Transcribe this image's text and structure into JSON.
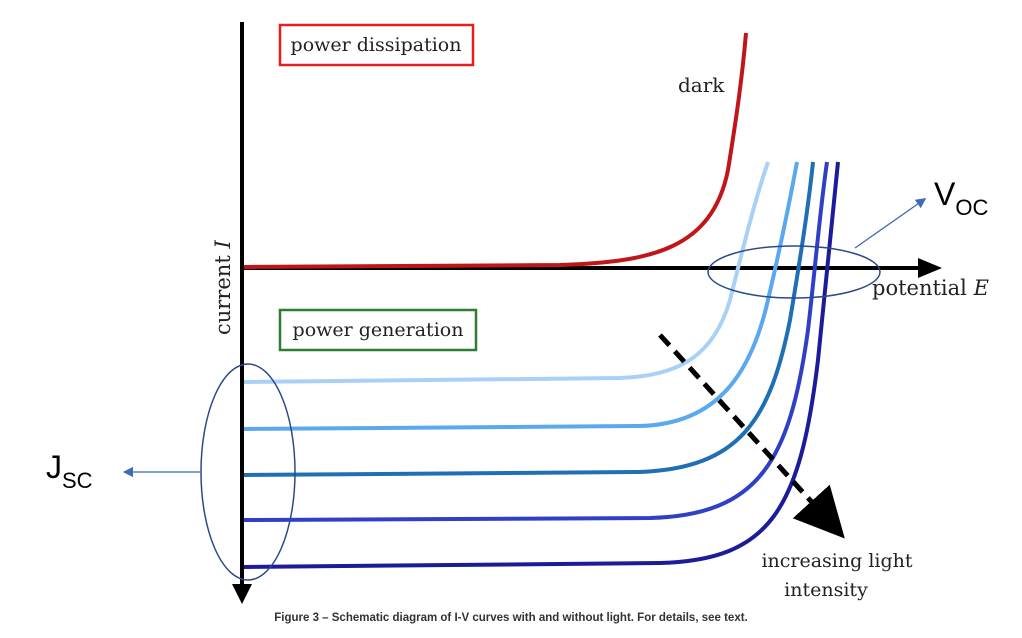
{
  "axes": {
    "y_label": "current",
    "y_label_var": "I",
    "x_label": "potential",
    "x_label_var": "E"
  },
  "regions": {
    "top_label": "power dissipation",
    "top_color": "#e31f1f",
    "bottom_label": "power generation",
    "bottom_color": "#2e7d32"
  },
  "curves": {
    "dark_label": "dark",
    "dark_color": "#c0161a",
    "illuminated_colors": [
      "#a8d1f5",
      "#5aa8ee",
      "#1e6fb4",
      "#2f40c6",
      "#1c1b9a"
    ]
  },
  "annotations": {
    "arrow_label_line1": "increasing light",
    "arrow_label_line2": "intensity",
    "voc_main": "V",
    "voc_sub": "OC",
    "jsc_main": "J",
    "jsc_sub": "SC",
    "marker_color": "#3f6bb5"
  },
  "caption": "Figure 3 – Schematic diagram of I-V curves with and without light. For details, see text."
}
